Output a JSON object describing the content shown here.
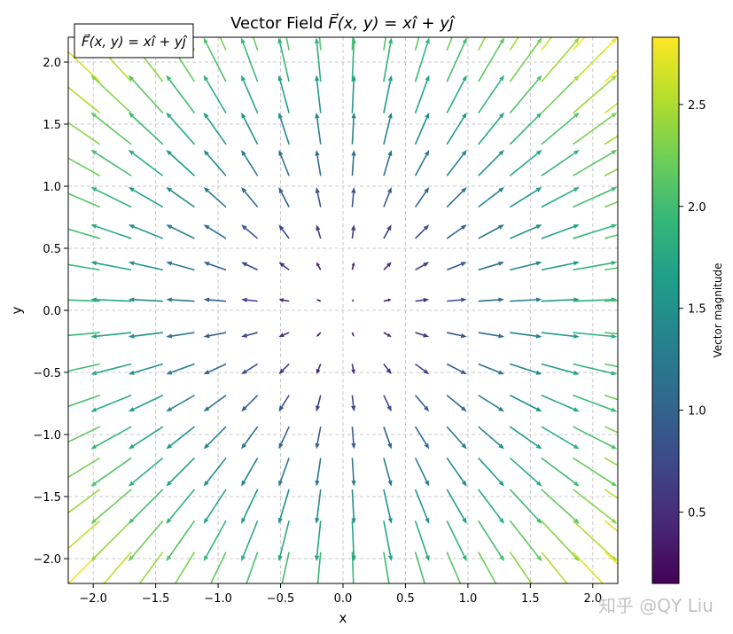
{
  "chart_data": {
    "type": "quiver",
    "title": "Vector Field F(x, y) = xi + yj",
    "legend_text": "F(x, y) = xi + yj",
    "legend_placement": "top-left",
    "xlabel": "x",
    "ylabel": "y",
    "xlim": [
      -2.2,
      2.2
    ],
    "ylim": [
      -2.2,
      2.2
    ],
    "xticks": [
      -2.0,
      -1.5,
      -1.0,
      -0.5,
      0.0,
      0.5,
      1.0,
      1.5,
      2.0
    ],
    "yticks": [
      -2.0,
      -1.5,
      -1.0,
      -0.5,
      0.0,
      0.5,
      1.0,
      1.5,
      2.0
    ],
    "xtick_labels": [
      "−2.0",
      "−1.5",
      "−1.0",
      "−0.5",
      "0.0",
      "0.5",
      "1.0",
      "1.5",
      "2.0"
    ],
    "ytick_labels": [
      "−2.0",
      "−1.5",
      "−1.0",
      "−0.5",
      "0.0",
      "0.5",
      "1.0",
      "1.5",
      "2.0"
    ],
    "grid": true,
    "field": {
      "u": "x",
      "v": "y"
    },
    "grid_points": {
      "x": [
        -2.2,
        -1.947,
        -1.695,
        -1.442,
        -1.189,
        -0.937,
        -0.684,
        -0.432,
        -0.179,
        0.074,
        0.326,
        0.579,
        0.832,
        1.084,
        1.337,
        1.589,
        1.842,
        2.095
      ],
      "y": [
        -2.2,
        -1.947,
        -1.695,
        -1.442,
        -1.189,
        -0.937,
        -0.684,
        -0.432,
        -0.179,
        0.074,
        0.326,
        0.579,
        0.832,
        1.084,
        1.337,
        1.589,
        1.842,
        2.095
      ]
    },
    "colormap": "viridis",
    "colorbar": {
      "label": "Vector magnitude",
      "range": [
        0.15,
        2.83
      ],
      "ticks": [
        0.5,
        1.0,
        1.5,
        2.0,
        2.5
      ],
      "tick_labels": [
        "0.5",
        "1.0",
        "1.5",
        "2.0",
        "2.5"
      ]
    }
  },
  "watermark": "知乎 @QY Liu",
  "colors": {
    "viridis": [
      "#440154",
      "#482878",
      "#3e4989",
      "#31688e",
      "#26828e",
      "#1f9e89",
      "#35b779",
      "#6ece58",
      "#b5de2b",
      "#fde725"
    ]
  }
}
